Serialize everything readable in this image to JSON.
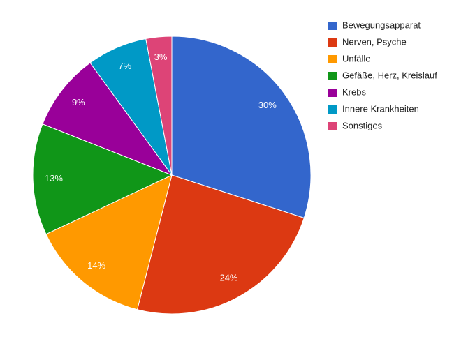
{
  "chart_data": {
    "type": "pie",
    "categories": [
      "Bewegungsapparat",
      "Nerven, Psyche",
      "Unfälle",
      "Gefäße, Herz, Kreislauf",
      "Krebs",
      "Innere Krankheiten",
      "Sonstiges"
    ],
    "values": [
      30,
      24,
      14,
      13,
      9,
      7,
      3
    ],
    "value_labels": [
      "30%",
      "24%",
      "14%",
      "13%",
      "9%",
      "7%",
      "3%"
    ],
    "colors": [
      "#3366cc",
      "#dc3912",
      "#ff9900",
      "#109618",
      "#990099",
      "#0099c6",
      "#dd4477"
    ],
    "legend": "right"
  }
}
